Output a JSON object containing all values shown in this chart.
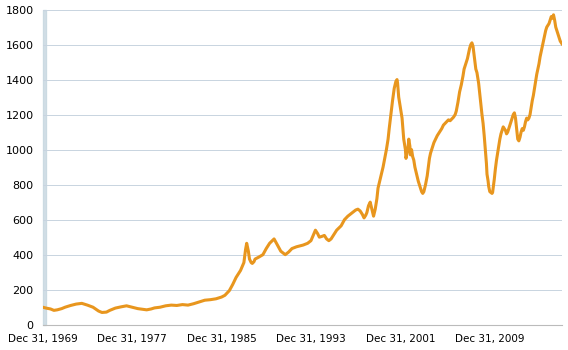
{
  "title": "",
  "background_color": "#ffffff",
  "plot_bg_color": "#ffffff",
  "line_color": "#e8961e",
  "line_width": 2.2,
  "ylim": [
    0,
    1800
  ],
  "yticks": [
    0,
    200,
    400,
    600,
    800,
    1000,
    1200,
    1400,
    1600,
    1800
  ],
  "xlabel_dates": [
    "Dec 31, 1969",
    "Dec 31, 1977",
    "Dec 31, 1985",
    "Dec 31, 1993",
    "Dec 31, 2001",
    "Dec 31, 2009"
  ],
  "xlabel_years": [
    1969,
    1977,
    1985,
    1993,
    2001,
    2009
  ],
  "grid_color": "#c8d4e0",
  "grid_alpha": 1.0,
  "left_bar_color": "#b8ccd8",
  "xlim_start": 1969.0,
  "xlim_end": 2015.5,
  "data": [
    [
      1969.0,
      100
    ],
    [
      1969.3,
      95
    ],
    [
      1969.7,
      90
    ],
    [
      1970.0,
      82
    ],
    [
      1970.3,
      85
    ],
    [
      1970.7,
      92
    ],
    [
      1971.0,
      100
    ],
    [
      1971.5,
      110
    ],
    [
      1972.0,
      118
    ],
    [
      1972.5,
      122
    ],
    [
      1973.0,
      112
    ],
    [
      1973.5,
      100
    ],
    [
      1974.0,
      78
    ],
    [
      1974.3,
      70
    ],
    [
      1974.7,
      72
    ],
    [
      1975.0,
      82
    ],
    [
      1975.5,
      95
    ],
    [
      1976.0,
      102
    ],
    [
      1976.5,
      108
    ],
    [
      1977.0,
      100
    ],
    [
      1977.5,
      92
    ],
    [
      1978.0,
      88
    ],
    [
      1978.3,
      85
    ],
    [
      1978.7,
      90
    ],
    [
      1979.0,
      96
    ],
    [
      1979.5,
      100
    ],
    [
      1980.0,
      108
    ],
    [
      1980.5,
      112
    ],
    [
      1981.0,
      110
    ],
    [
      1981.5,
      115
    ],
    [
      1982.0,
      112
    ],
    [
      1982.5,
      120
    ],
    [
      1983.0,
      130
    ],
    [
      1983.5,
      140
    ],
    [
      1984.0,
      143
    ],
    [
      1984.5,
      148
    ],
    [
      1985.0,
      158
    ],
    [
      1985.3,
      168
    ],
    [
      1985.7,
      195
    ],
    [
      1986.0,
      230
    ],
    [
      1986.3,
      270
    ],
    [
      1986.7,
      310
    ],
    [
      1987.0,
      355
    ],
    [
      1987.15,
      430
    ],
    [
      1987.25,
      465
    ],
    [
      1987.4,
      420
    ],
    [
      1987.5,
      375
    ],
    [
      1987.65,
      355
    ],
    [
      1987.75,
      350
    ],
    [
      1987.9,
      360
    ],
    [
      1988.0,
      375
    ],
    [
      1988.3,
      385
    ],
    [
      1988.7,
      400
    ],
    [
      1989.0,
      435
    ],
    [
      1989.3,
      465
    ],
    [
      1989.7,
      490
    ],
    [
      1990.0,
      455
    ],
    [
      1990.3,
      420
    ],
    [
      1990.7,
      400
    ],
    [
      1991.0,
      415
    ],
    [
      1991.3,
      435
    ],
    [
      1991.7,
      445
    ],
    [
      1992.0,
      450
    ],
    [
      1992.3,
      455
    ],
    [
      1992.7,
      465
    ],
    [
      1993.0,
      480
    ],
    [
      1993.2,
      510
    ],
    [
      1993.4,
      540
    ],
    [
      1993.5,
      530
    ],
    [
      1993.6,
      520
    ],
    [
      1993.75,
      500
    ],
    [
      1994.0,
      505
    ],
    [
      1994.2,
      510
    ],
    [
      1994.4,
      490
    ],
    [
      1994.6,
      480
    ],
    [
      1994.8,
      490
    ],
    [
      1995.0,
      510
    ],
    [
      1995.3,
      540
    ],
    [
      1995.7,
      565
    ],
    [
      1996.0,
      600
    ],
    [
      1996.3,
      620
    ],
    [
      1996.7,
      640
    ],
    [
      1997.0,
      655
    ],
    [
      1997.2,
      660
    ],
    [
      1997.4,
      650
    ],
    [
      1997.6,
      630
    ],
    [
      1997.75,
      610
    ],
    [
      1997.9,
      625
    ],
    [
      1998.0,
      640
    ],
    [
      1998.15,
      680
    ],
    [
      1998.3,
      700
    ],
    [
      1998.45,
      660
    ],
    [
      1998.6,
      620
    ],
    [
      1998.75,
      660
    ],
    [
      1998.9,
      720
    ],
    [
      1999.0,
      780
    ],
    [
      1999.15,
      820
    ],
    [
      1999.3,
      860
    ],
    [
      1999.45,
      900
    ],
    [
      1999.6,
      950
    ],
    [
      1999.75,
      1000
    ],
    [
      1999.9,
      1060
    ],
    [
      2000.0,
      1120
    ],
    [
      2000.15,
      1200
    ],
    [
      2000.3,
      1280
    ],
    [
      2000.45,
      1350
    ],
    [
      2000.6,
      1390
    ],
    [
      2000.7,
      1400
    ],
    [
      2000.75,
      1380
    ],
    [
      2000.85,
      1300
    ],
    [
      2001.0,
      1240
    ],
    [
      2001.15,
      1180
    ],
    [
      2001.3,
      1060
    ],
    [
      2001.45,
      1000
    ],
    [
      2001.5,
      950
    ],
    [
      2001.6,
      980
    ],
    [
      2001.7,
      1020
    ],
    [
      2001.75,
      1060
    ],
    [
      2001.85,
      1020
    ],
    [
      2001.9,
      970
    ],
    [
      2002.0,
      1000
    ],
    [
      2002.1,
      960
    ],
    [
      2002.2,
      940
    ],
    [
      2002.3,
      900
    ],
    [
      2002.45,
      860
    ],
    [
      2002.6,
      820
    ],
    [
      2002.7,
      800
    ],
    [
      2002.8,
      780
    ],
    [
      2002.9,
      760
    ],
    [
      2003.0,
      750
    ],
    [
      2003.1,
      760
    ],
    [
      2003.25,
      800
    ],
    [
      2003.4,
      850
    ],
    [
      2003.5,
      900
    ],
    [
      2003.6,
      950
    ],
    [
      2003.7,
      980
    ],
    [
      2003.8,
      1000
    ],
    [
      2003.9,
      1020
    ],
    [
      2004.0,
      1040
    ],
    [
      2004.15,
      1060
    ],
    [
      2004.3,
      1080
    ],
    [
      2004.5,
      1100
    ],
    [
      2004.7,
      1120
    ],
    [
      2004.85,
      1140
    ],
    [
      2005.0,
      1150
    ],
    [
      2005.15,
      1160
    ],
    [
      2005.3,
      1170
    ],
    [
      2005.45,
      1165
    ],
    [
      2005.6,
      1175
    ],
    [
      2005.75,
      1185
    ],
    [
      2005.9,
      1200
    ],
    [
      2006.0,
      1220
    ],
    [
      2006.15,
      1270
    ],
    [
      2006.3,
      1330
    ],
    [
      2006.45,
      1370
    ],
    [
      2006.6,
      1420
    ],
    [
      2006.7,
      1460
    ],
    [
      2006.75,
      1470
    ],
    [
      2006.85,
      1490
    ],
    [
      2007.0,
      1520
    ],
    [
      2007.1,
      1550
    ],
    [
      2007.2,
      1580
    ],
    [
      2007.3,
      1600
    ],
    [
      2007.4,
      1610
    ],
    [
      2007.5,
      1590
    ],
    [
      2007.6,
      1540
    ],
    [
      2007.7,
      1490
    ],
    [
      2007.75,
      1460
    ],
    [
      2007.85,
      1440
    ],
    [
      2007.9,
      1420
    ],
    [
      2008.0,
      1380
    ],
    [
      2008.1,
      1320
    ],
    [
      2008.2,
      1260
    ],
    [
      2008.3,
      1200
    ],
    [
      2008.4,
      1150
    ],
    [
      2008.5,
      1080
    ],
    [
      2008.6,
      1000
    ],
    [
      2008.7,
      920
    ],
    [
      2008.75,
      860
    ],
    [
      2008.85,
      820
    ],
    [
      2008.9,
      790
    ],
    [
      2009.0,
      760
    ],
    [
      2009.1,
      755
    ],
    [
      2009.2,
      750
    ],
    [
      2009.25,
      755
    ],
    [
      2009.3,
      780
    ],
    [
      2009.4,
      830
    ],
    [
      2009.5,
      890
    ],
    [
      2009.6,
      940
    ],
    [
      2009.7,
      980
    ],
    [
      2009.8,
      1020
    ],
    [
      2009.9,
      1060
    ],
    [
      2010.0,
      1090
    ],
    [
      2010.1,
      1110
    ],
    [
      2010.2,
      1130
    ],
    [
      2010.3,
      1120
    ],
    [
      2010.4,
      1110
    ],
    [
      2010.5,
      1090
    ],
    [
      2010.6,
      1100
    ],
    [
      2010.7,
      1120
    ],
    [
      2010.8,
      1140
    ],
    [
      2010.9,
      1160
    ],
    [
      2011.0,
      1180
    ],
    [
      2011.1,
      1200
    ],
    [
      2011.2,
      1210
    ],
    [
      2011.3,
      1180
    ],
    [
      2011.4,
      1120
    ],
    [
      2011.5,
      1060
    ],
    [
      2011.6,
      1050
    ],
    [
      2011.7,
      1070
    ],
    [
      2011.8,
      1100
    ],
    [
      2011.9,
      1120
    ],
    [
      2012.0,
      1110
    ],
    [
      2012.1,
      1130
    ],
    [
      2012.2,
      1160
    ],
    [
      2012.3,
      1180
    ],
    [
      2012.4,
      1170
    ],
    [
      2012.5,
      1180
    ],
    [
      2012.6,
      1200
    ],
    [
      2012.7,
      1240
    ],
    [
      2012.8,
      1280
    ],
    [
      2012.9,
      1310
    ],
    [
      2013.0,
      1350
    ],
    [
      2013.1,
      1390
    ],
    [
      2013.2,
      1430
    ],
    [
      2013.3,
      1460
    ],
    [
      2013.4,
      1490
    ],
    [
      2013.5,
      1530
    ],
    [
      2013.6,
      1560
    ],
    [
      2013.7,
      1590
    ],
    [
      2013.8,
      1620
    ],
    [
      2013.9,
      1650
    ],
    [
      2014.0,
      1680
    ],
    [
      2014.1,
      1700
    ],
    [
      2014.2,
      1710
    ],
    [
      2014.3,
      1720
    ],
    [
      2014.4,
      1740
    ],
    [
      2014.5,
      1760
    ],
    [
      2014.6,
      1750
    ],
    [
      2014.65,
      1760
    ],
    [
      2014.7,
      1770
    ],
    [
      2014.75,
      1755
    ],
    [
      2014.8,
      1740
    ],
    [
      2014.85,
      1720
    ],
    [
      2014.9,
      1700
    ],
    [
      2015.0,
      1680
    ],
    [
      2015.1,
      1660
    ],
    [
      2015.2,
      1640
    ],
    [
      2015.3,
      1620
    ],
    [
      2015.4,
      1610
    ],
    [
      2015.5,
      1600
    ]
  ]
}
